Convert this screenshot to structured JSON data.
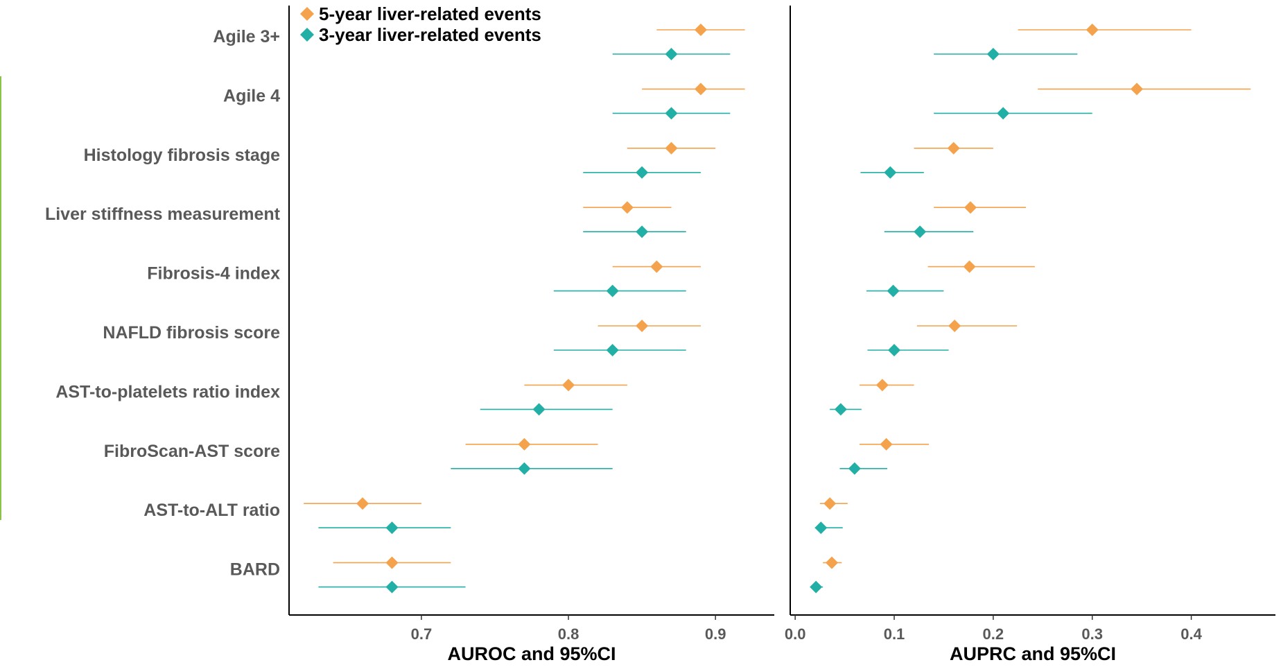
{
  "chart_data": {
    "type": "scatter",
    "categories": [
      "Agile 3+",
      "Agile 4",
      "Histology fibrosis stage",
      "Liver stiffness measurement",
      "Fibrosis-4 index",
      "NAFLD fibrosis score",
      "AST-to-platelets ratio index",
      "FibroScan-AST score",
      "AST-to-ALT ratio",
      "BARD"
    ],
    "legend": {
      "position": "top-left"
    },
    "series": [
      {
        "name": "5-year liver-related events",
        "color": "#f4a24b"
      },
      {
        "name": "3-year liver-related events",
        "color": "#22b0a6"
      }
    ],
    "panels": [
      {
        "xlabel": "AUROC and 95%CI",
        "xlim": [
          0.61,
          0.94
        ],
        "ticks": [
          0.7,
          0.8,
          0.9
        ],
        "tick_labels": [
          "0.7",
          "0.8",
          "0.9"
        ],
        "five_year": [
          {
            "est": 0.89,
            "lo": 0.86,
            "hi": 0.92
          },
          {
            "est": 0.89,
            "lo": 0.85,
            "hi": 0.92
          },
          {
            "est": 0.87,
            "lo": 0.84,
            "hi": 0.9
          },
          {
            "est": 0.84,
            "lo": 0.81,
            "hi": 0.87
          },
          {
            "est": 0.86,
            "lo": 0.83,
            "hi": 0.89
          },
          {
            "est": 0.85,
            "lo": 0.82,
            "hi": 0.89
          },
          {
            "est": 0.8,
            "lo": 0.77,
            "hi": 0.84
          },
          {
            "est": 0.77,
            "lo": 0.73,
            "hi": 0.82
          },
          {
            "est": 0.66,
            "lo": 0.62,
            "hi": 0.7
          },
          {
            "est": 0.68,
            "lo": 0.64,
            "hi": 0.72
          }
        ],
        "three_year": [
          {
            "est": 0.87,
            "lo": 0.83,
            "hi": 0.91
          },
          {
            "est": 0.87,
            "lo": 0.83,
            "hi": 0.91
          },
          {
            "est": 0.85,
            "lo": 0.81,
            "hi": 0.89
          },
          {
            "est": 0.85,
            "lo": 0.81,
            "hi": 0.88
          },
          {
            "est": 0.83,
            "lo": 0.79,
            "hi": 0.88
          },
          {
            "est": 0.83,
            "lo": 0.79,
            "hi": 0.88
          },
          {
            "est": 0.78,
            "lo": 0.74,
            "hi": 0.83
          },
          {
            "est": 0.77,
            "lo": 0.72,
            "hi": 0.83
          },
          {
            "est": 0.68,
            "lo": 0.63,
            "hi": 0.72
          },
          {
            "est": 0.68,
            "lo": 0.63,
            "hi": 0.73
          }
        ]
      },
      {
        "xlabel": "AUPRC and 95%CI",
        "xlim": [
          -0.005,
          0.485
        ],
        "ticks": [
          0.0,
          0.1,
          0.2,
          0.3,
          0.4
        ],
        "tick_labels": [
          "0.0",
          "0.1",
          "0.2",
          "0.3",
          "0.4"
        ],
        "five_year": [
          {
            "est": 0.3,
            "lo": 0.225,
            "hi": 0.4
          },
          {
            "est": 0.345,
            "lo": 0.245,
            "hi": 0.46
          },
          {
            "est": 0.16,
            "lo": 0.12,
            "hi": 0.2
          },
          {
            "est": 0.177,
            "lo": 0.14,
            "hi": 0.233
          },
          {
            "est": 0.176,
            "lo": 0.134,
            "hi": 0.242
          },
          {
            "est": 0.161,
            "lo": 0.123,
            "hi": 0.224
          },
          {
            "est": 0.088,
            "lo": 0.065,
            "hi": 0.12
          },
          {
            "est": 0.092,
            "lo": 0.065,
            "hi": 0.135
          },
          {
            "est": 0.035,
            "lo": 0.025,
            "hi": 0.053
          },
          {
            "est": 0.037,
            "lo": 0.028,
            "hi": 0.047
          }
        ],
        "three_year": [
          {
            "est": 0.2,
            "lo": 0.14,
            "hi": 0.285
          },
          {
            "est": 0.21,
            "lo": 0.14,
            "hi": 0.3
          },
          {
            "est": 0.096,
            "lo": 0.066,
            "hi": 0.13
          },
          {
            "est": 0.126,
            "lo": 0.09,
            "hi": 0.18
          },
          {
            "est": 0.099,
            "lo": 0.072,
            "hi": 0.15
          },
          {
            "est": 0.1,
            "lo": 0.073,
            "hi": 0.155
          },
          {
            "est": 0.046,
            "lo": 0.035,
            "hi": 0.067
          },
          {
            "est": 0.06,
            "lo": 0.045,
            "hi": 0.093
          },
          {
            "est": 0.026,
            "lo": 0.02,
            "hi": 0.048
          },
          {
            "est": 0.021,
            "lo": 0.019,
            "hi": 0.028
          }
        ]
      }
    ]
  }
}
